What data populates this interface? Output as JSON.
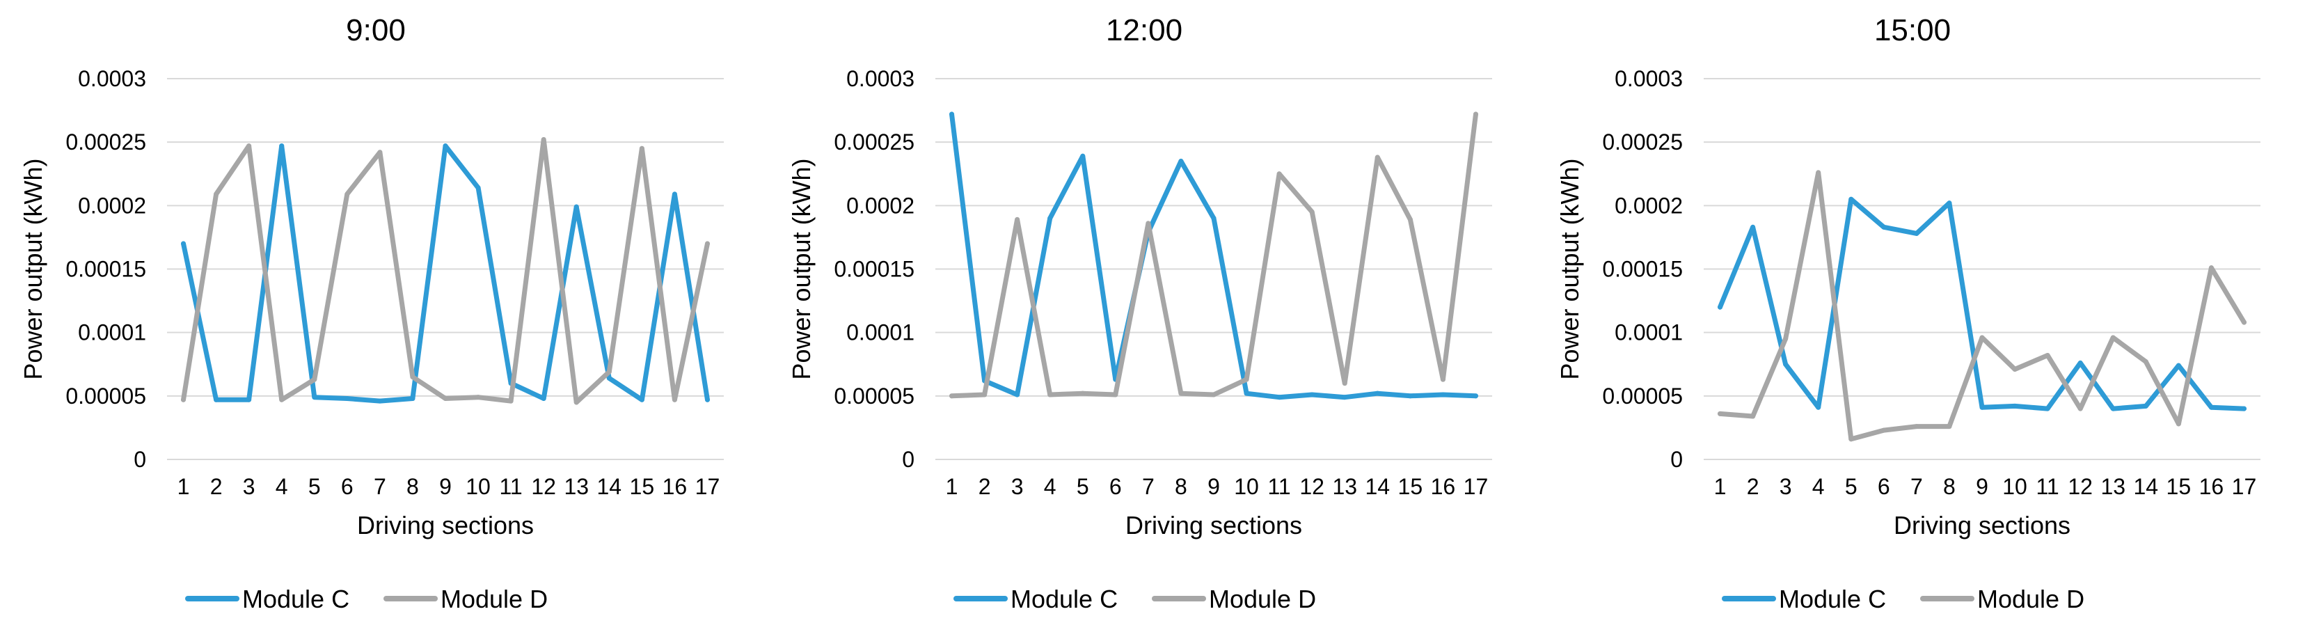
{
  "colors": {
    "module_c": "#2e9bd6",
    "module_d": "#a6a6a6",
    "grid": "#d9d9d9"
  },
  "chart_data": [
    {
      "type": "line",
      "title": "9:00",
      "xlabel": "Driving sections",
      "ylabel": "Power output (kWh)",
      "ylim": [
        0,
        0.0003
      ],
      "yticks": [
        "0",
        "0.00005",
        "0.0001",
        "0.00015",
        "0.0002",
        "0.00025",
        "0.0003"
      ],
      "categories": [
        "1",
        "2",
        "3",
        "4",
        "5",
        "6",
        "7",
        "8",
        "9",
        "10",
        "11",
        "12",
        "13",
        "14",
        "15",
        "16",
        "17"
      ],
      "grid": true,
      "legend": "bottom-left",
      "series": [
        {
          "name": "Module C",
          "color": "#2e9bd6",
          "values": [
            0.00017,
            4.7e-05,
            4.7e-05,
            0.000247,
            4.9e-05,
            4.8e-05,
            4.6e-05,
            4.8e-05,
            0.000247,
            0.000214,
            6e-05,
            4.8e-05,
            0.000199,
            6.4e-05,
            4.7e-05,
            0.000209,
            4.7e-05
          ]
        },
        {
          "name": "Module D",
          "color": "#a6a6a6",
          "values": [
            4.7e-05,
            0.000209,
            0.000247,
            4.7e-05,
            6.3e-05,
            0.000209,
            0.000242,
            6.5e-05,
            4.8e-05,
            4.9e-05,
            4.6e-05,
            0.000252,
            4.5e-05,
            6.9e-05,
            0.000245,
            4.7e-05,
            0.00017
          ]
        }
      ]
    },
    {
      "type": "line",
      "title": "12:00",
      "xlabel": "Driving sections",
      "ylabel": "Power output (kWh)",
      "ylim": [
        0,
        0.0003
      ],
      "yticks": [
        "0",
        "0.00005",
        "0.0001",
        "0.00015",
        "0.0002",
        "0.00025",
        "0.0003"
      ],
      "categories": [
        "1",
        "2",
        "3",
        "4",
        "5",
        "6",
        "7",
        "8",
        "9",
        "10",
        "11",
        "12",
        "13",
        "14",
        "15",
        "16",
        "17"
      ],
      "grid": true,
      "legend": "bottom-left",
      "series": [
        {
          "name": "Module C",
          "color": "#2e9bd6",
          "values": [
            0.000272,
            6.2e-05,
            5.1e-05,
            0.00019,
            0.000239,
            6.3e-05,
            0.000179,
            0.000235,
            0.00019,
            5.2e-05,
            4.9e-05,
            5.1e-05,
            4.9e-05,
            5.2e-05,
            5e-05,
            5.1e-05,
            5e-05
          ]
        },
        {
          "name": "Module D",
          "color": "#a6a6a6",
          "values": [
            5e-05,
            5.1e-05,
            0.000189,
            5.1e-05,
            5.2e-05,
            5.1e-05,
            0.000186,
            5.2e-05,
            5.1e-05,
            6.3e-05,
            0.000225,
            0.000195,
            6e-05,
            0.000238,
            0.000189,
            6.3e-05,
            0.000272
          ]
        }
      ]
    },
    {
      "type": "line",
      "title": "15:00",
      "xlabel": "Driving sections",
      "ylabel": "Power output (kWh)",
      "ylim": [
        0,
        0.0003
      ],
      "yticks": [
        "0",
        "0.00005",
        "0.0001",
        "0.00015",
        "0.0002",
        "0.00025",
        "0.0003"
      ],
      "categories": [
        "1",
        "2",
        "3",
        "4",
        "5",
        "6",
        "7",
        "8",
        "9",
        "10",
        "11",
        "12",
        "13",
        "14",
        "15",
        "16",
        "17"
      ],
      "grid": true,
      "legend": "bottom-left",
      "series": [
        {
          "name": "Module C",
          "color": "#2e9bd6",
          "values": [
            0.00012,
            0.000183,
            7.5e-05,
            4.1e-05,
            0.000205,
            0.000183,
            0.000178,
            0.000202,
            4.1e-05,
            4.2e-05,
            4e-05,
            7.6e-05,
            4e-05,
            4.2e-05,
            7.4e-05,
            4.1e-05,
            4e-05
          ]
        },
        {
          "name": "Module D",
          "color": "#a6a6a6",
          "values": [
            3.6e-05,
            3.4e-05,
            9.5e-05,
            0.000226,
            1.6e-05,
            2.3e-05,
            2.6e-05,
            2.6e-05,
            9.6e-05,
            7.1e-05,
            8.2e-05,
            4e-05,
            9.6e-05,
            7.7e-05,
            2.8e-05,
            0.000151,
            0.000108
          ]
        }
      ]
    }
  ]
}
